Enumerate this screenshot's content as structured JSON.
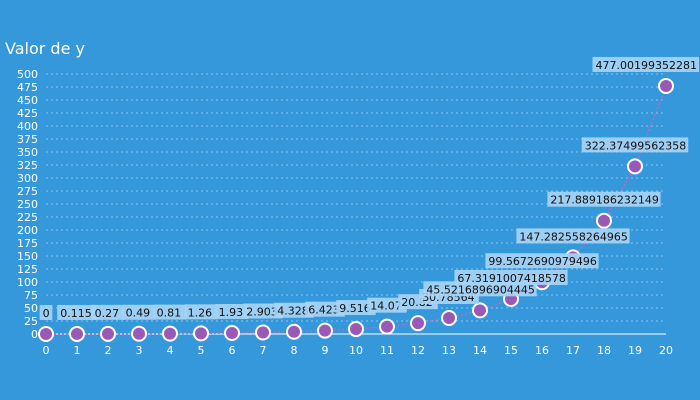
{
  "chart_data": {
    "type": "line",
    "title": "Valor de y",
    "xlabel": "",
    "ylabel": "",
    "x": [
      0,
      1,
      2,
      3,
      4,
      5,
      6,
      7,
      8,
      9,
      10,
      11,
      12,
      13,
      14,
      15,
      16,
      17,
      18,
      19,
      20
    ],
    "series": [
      {
        "values": [
          0,
          0.115,
          0.27,
          0.49,
          0.81,
          1.26,
          1.93,
          2.903,
          4.328,
          6.423,
          9.516,
          14.07,
          20.82,
          30.7856,
          45.5216896904445,
          67.3191007418578,
          99.5672690979496,
          147.282558264965,
          217.889186232149,
          322.37499562358,
          477.00199352281
        ],
        "labels": [
          "0",
          "0.115",
          "0.27",
          "0.49",
          "0.81",
          "1.26",
          "1.93",
          "2.903",
          "4.328",
          "6.423",
          "9.516",
          "14.07",
          "20.82",
          "30.78564",
          "45.5216896904445",
          "67.3191007418578",
          "99.5672690979496",
          "147.282558264965",
          "217.889186232149",
          "322.37499562358",
          "477.00199352281"
        ]
      }
    ],
    "xlim": [
      0,
      20
    ],
    "ylim": [
      0,
      500
    ],
    "yticks": [
      0,
      25,
      50,
      75,
      100,
      125,
      150,
      175,
      200,
      225,
      250,
      275,
      300,
      325,
      350,
      375,
      400,
      425,
      450,
      475,
      500
    ],
    "grid": true,
    "colors": {
      "background": "#3498db",
      "line": "#b86bc9",
      "marker": "#9b59b6",
      "marker_edge": "#ffffff",
      "label_bg": "#a8d4f5",
      "axis": "#ffffff"
    }
  }
}
